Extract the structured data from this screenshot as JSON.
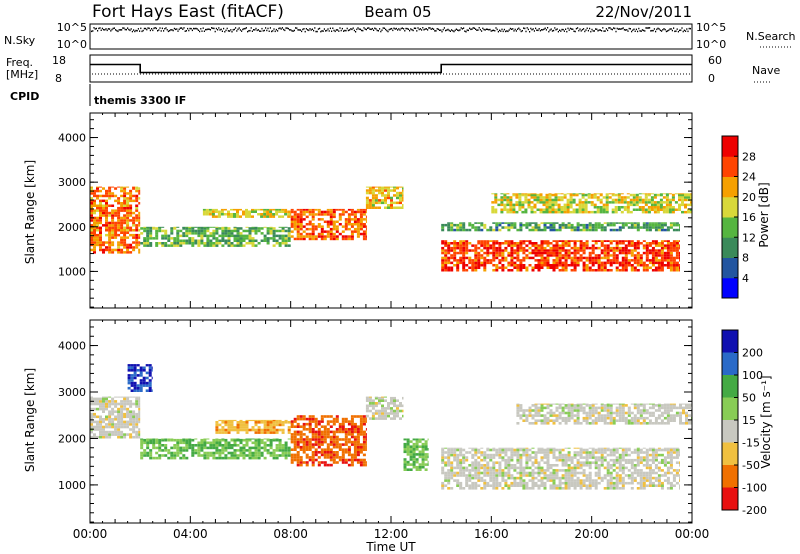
{
  "header": {
    "station": "Fort Hays East (fitACF)",
    "beam": "Beam 05",
    "date": "22/Nov/2011"
  },
  "strips": {
    "nsky": {
      "label": "N.Sky",
      "ticks": [
        "10^5",
        "10^0"
      ],
      "right_ticks": [
        "10^5",
        "10^0"
      ],
      "right_label": "N.Search",
      "level": 0.8
    },
    "freq": {
      "label_lines": [
        "Freq.",
        "[MHz]"
      ],
      "ticks": [
        "18",
        "8"
      ],
      "right_ticks": [
        "60",
        "0"
      ],
      "right_label": "Nave",
      "segments": [
        {
          "from": 0,
          "to": 2,
          "mhz": 14.5
        },
        {
          "from": 2,
          "to": 14,
          "mhz": 11.5
        },
        {
          "from": 14,
          "to": 24,
          "mhz": 14.5
        }
      ]
    },
    "cpid": {
      "label": "CPID",
      "value": "themis 3300 IF"
    }
  },
  "chart_data": [
    {
      "type": "heatmap",
      "ylabel": "Slant Range [km]",
      "ylim": [
        180,
        4550
      ],
      "yticks": [
        "1000",
        "2000",
        "3000",
        "4000"
      ],
      "xlim": [
        0,
        24
      ],
      "grid": false,
      "colorbar": {
        "label": "Power [dB]",
        "ticks": [
          "4",
          "8",
          "12",
          "16",
          "20",
          "24",
          "28"
        ],
        "colors": [
          "#0000ff",
          "#2255a0",
          "#3a8a5a",
          "#55b540",
          "#d8d83a",
          "#f5a000",
          "#ff4400",
          "#ee0000"
        ]
      },
      "bands": [
        {
          "t0": 0.0,
          "t1": 2.0,
          "r0": 1400,
          "r1": 2900,
          "value": 24
        },
        {
          "t0": 2.0,
          "t1": 8.0,
          "r0": 1550,
          "r1": 2000,
          "value": 13
        },
        {
          "t0": 4.5,
          "t1": 8.0,
          "r0": 2200,
          "r1": 2400,
          "value": 18
        },
        {
          "t0": 8.0,
          "t1": 11.0,
          "r0": 1700,
          "r1": 2400,
          "value": 25
        },
        {
          "t0": 11.0,
          "t1": 12.5,
          "r0": 2400,
          "r1": 2900,
          "value": 20
        },
        {
          "t0": 14.0,
          "t1": 23.5,
          "r0": 1000,
          "r1": 1700,
          "value": 27
        },
        {
          "t0": 14.0,
          "t1": 23.5,
          "r0": 1900,
          "r1": 2100,
          "value": 12
        },
        {
          "t0": 16.0,
          "t1": 24.0,
          "r0": 2300,
          "r1": 2750,
          "value": 18
        }
      ]
    },
    {
      "type": "heatmap",
      "xlabel": "Time UT",
      "ylabel": "Slant Range [km]",
      "ylim": [
        180,
        4550
      ],
      "yticks": [
        "1000",
        "2000",
        "3000",
        "4000"
      ],
      "xticks": [
        "00:00",
        "04:00",
        "08:00",
        "12:00",
        "16:00",
        "20:00",
        "00:00"
      ],
      "xlim": [
        0,
        24
      ],
      "grid": false,
      "colorbar": {
        "label": "Velocity [m s⁻¹]",
        "ticks": [
          "200",
          "100",
          "50",
          "15",
          "-15",
          "-50",
          "-100",
          "-200"
        ],
        "colors": [
          "#1010b0",
          "#2a6ac8",
          "#44aa44",
          "#88cc55",
          "#c8c8c0",
          "#f0c040",
          "#f07000",
          "#e81010"
        ]
      },
      "bands": [
        {
          "t0": 0.0,
          "t1": 2.0,
          "r0": 2000,
          "r1": 2900,
          "value": 0
        },
        {
          "t0": 1.5,
          "t1": 2.5,
          "r0": 3000,
          "r1": 3600,
          "value": 200
        },
        {
          "t0": 2.0,
          "t1": 8.0,
          "r0": 1550,
          "r1": 2000,
          "value": 50
        },
        {
          "t0": 5.0,
          "t1": 8.0,
          "r0": 2100,
          "r1": 2400,
          "value": -40
        },
        {
          "t0": 8.0,
          "t1": 11.0,
          "r0": 1400,
          "r1": 2500,
          "value": -90
        },
        {
          "t0": 11.0,
          "t1": 12.5,
          "r0": 2400,
          "r1": 2900,
          "value": 0
        },
        {
          "t0": 12.5,
          "t1": 13.5,
          "r0": 1300,
          "r1": 2000,
          "value": 50
        },
        {
          "t0": 14.0,
          "t1": 23.5,
          "r0": 900,
          "r1": 1800,
          "value": 0
        },
        {
          "t0": 17.0,
          "t1": 24.0,
          "r0": 2300,
          "r1": 2750,
          "value": 0
        }
      ]
    }
  ]
}
